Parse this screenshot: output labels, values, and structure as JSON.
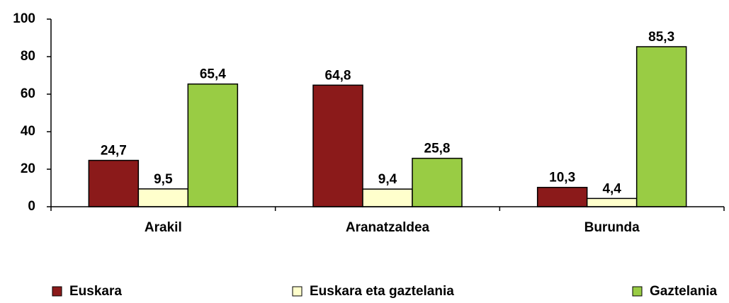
{
  "chart_data": {
    "type": "bar",
    "categories": [
      "Arakil",
      "Aranatzaldea",
      "Burunda"
    ],
    "series": [
      {
        "name": "Euskara",
        "color": "#8b1a1a",
        "values": [
          24.7,
          64.8,
          10.3
        ],
        "value_labels": [
          "24,7",
          "64,8",
          "10,3"
        ]
      },
      {
        "name": "Euskara eta gaztelania",
        "color": "#ffffcc",
        "values": [
          9.5,
          9.4,
          4.4
        ],
        "value_labels": [
          "9,5",
          "9,4",
          "4,4"
        ]
      },
      {
        "name": "Gaztelania",
        "color": "#99cc44",
        "values": [
          65.4,
          25.8,
          85.3
        ],
        "value_labels": [
          "65,4",
          "25,8",
          "85,3"
        ]
      }
    ],
    "ylim": [
      0,
      100
    ],
    "yticks": [
      0,
      20,
      40,
      60,
      80,
      100
    ],
    "grid": false,
    "legend": "bottom"
  }
}
